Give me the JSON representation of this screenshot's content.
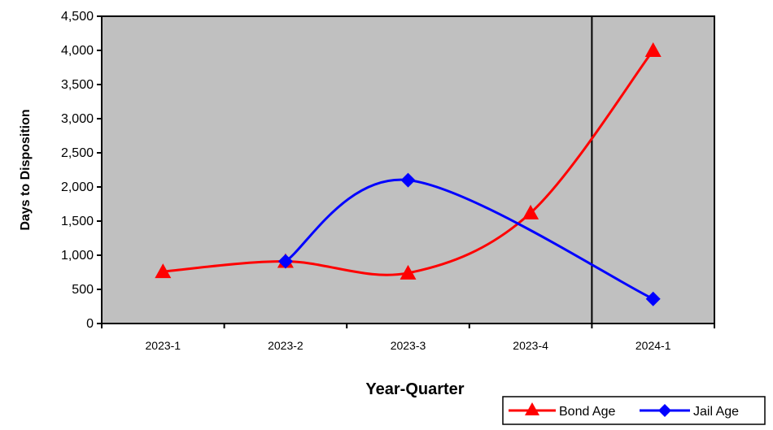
{
  "chart_data": {
    "type": "line",
    "categories": [
      "2023-1",
      "2023-2",
      "2023-3",
      "2023-4",
      "2024-1"
    ],
    "xlabel": "Year-Quarter",
    "ylabel": "Days to Disposition",
    "ylim": [
      0,
      4500
    ],
    "yticks": [
      0,
      500,
      1000,
      1500,
      2000,
      2500,
      3000,
      3500,
      4000,
      4500
    ],
    "ytick_labels": [
      "0",
      "500",
      "1,000",
      "1,500",
      "2,000",
      "2,500",
      "3,000",
      "3,500",
      "4,000",
      "4,500"
    ],
    "grid": false,
    "smooth": true,
    "plot_background": "#c0c0c0",
    "divider_between": [
      "2023-4",
      "2024-1"
    ],
    "legend_position": "bottom-right",
    "series": [
      {
        "name": "Bond Age",
        "color": "#ff0000",
        "marker": "triangle",
        "values": [
          760,
          910,
          740,
          1620,
          4000
        ]
      },
      {
        "name": "Jail Age",
        "color": "#0000ff",
        "marker": "diamond",
        "values": [
          null,
          910,
          2100,
          null,
          360
        ]
      }
    ]
  }
}
